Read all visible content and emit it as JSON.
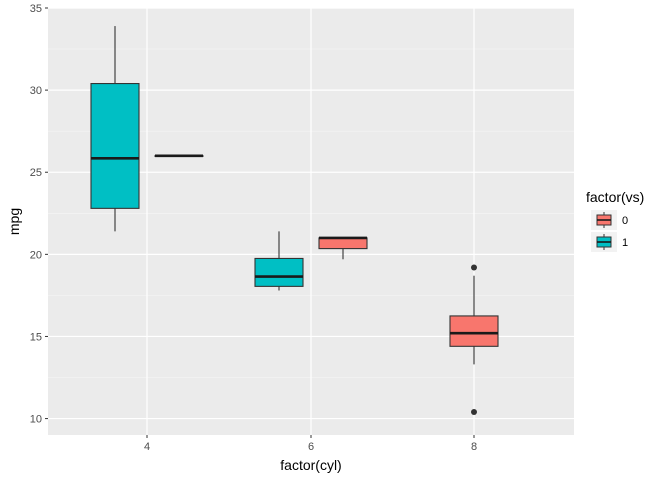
{
  "chart_data": {
    "type": "boxplot",
    "xlabel": "factor(cyl)",
    "ylabel": "mpg",
    "categories": [
      "4",
      "6",
      "8"
    ],
    "ylim": [
      9.0,
      35.0
    ],
    "y_ticks": [
      10,
      15,
      20,
      25,
      30,
      35
    ],
    "grid": true,
    "legend": {
      "title": "factor(vs)",
      "position": "right",
      "entries": [
        {
          "label": "0",
          "color": "#F8766D"
        },
        {
          "label": "1",
          "color": "#00BFC4"
        }
      ]
    },
    "boxes": [
      {
        "category": "4",
        "group": "1",
        "min": 21.4,
        "q1": 22.8,
        "median": 25.85,
        "q3": 30.4,
        "max": 33.9,
        "outliers": []
      },
      {
        "category": "4",
        "group": "0",
        "min": 26.0,
        "q1": 26.0,
        "median": 26.0,
        "q3": 26.0,
        "max": 26.0,
        "outliers": []
      },
      {
        "category": "6",
        "group": "1",
        "min": 17.8,
        "q1": 18.05,
        "median": 18.65,
        "q3": 19.75,
        "max": 21.4,
        "outliers": []
      },
      {
        "category": "6",
        "group": "0",
        "min": 19.7,
        "q1": 20.35,
        "median": 21.0,
        "q3": 21.0,
        "max": 21.0,
        "outliers": []
      },
      {
        "category": "8",
        "group": "0",
        "min": 13.3,
        "q1": 14.4,
        "median": 15.2,
        "q3": 16.25,
        "max": 18.7,
        "outliers": [
          10.4,
          19.2
        ]
      }
    ]
  }
}
